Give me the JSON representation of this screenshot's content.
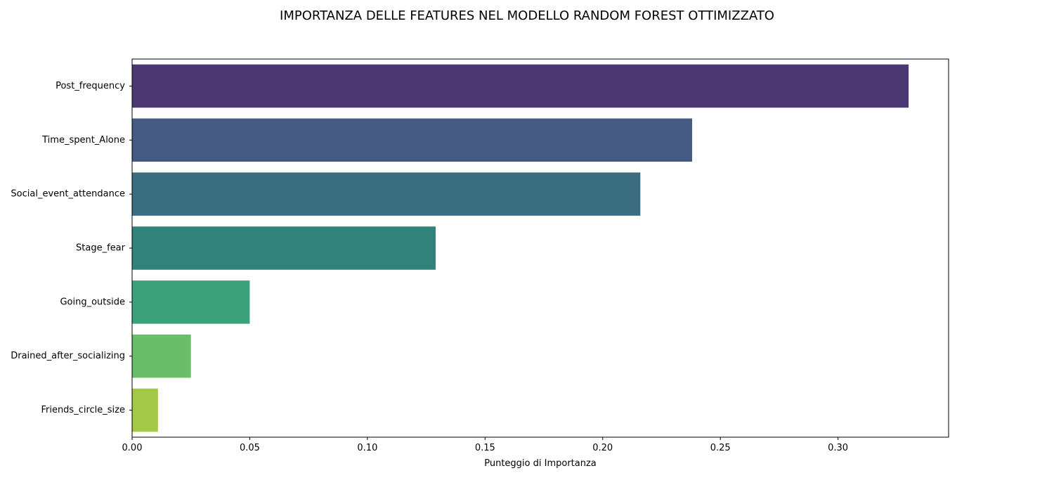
{
  "chart_data": {
    "type": "bar",
    "orientation": "horizontal",
    "title": "IMPORTANZA DELLE FEATURES NEL MODELLO RANDOM FOREST OTTIMIZZATO",
    "xlabel": "Punteggio di Importanza",
    "ylabel": "",
    "categories": [
      "Post_frequency",
      "Time_spent_Alone",
      "Social_event_attendance",
      "Stage_fear",
      "Going_outside",
      "Drained_after_socializing",
      "Friends_circle_size"
    ],
    "values": [
      0.33,
      0.238,
      0.216,
      0.129,
      0.05,
      0.025,
      0.011
    ],
    "colors": [
      "#4b3873",
      "#455a82",
      "#3b6d80",
      "#2f837b",
      "#3aa17a",
      "#6abd69",
      "#a3c847"
    ],
    "xlim": [
      0,
      0.347
    ],
    "xticks": [
      0.0,
      0.05,
      0.1,
      0.15,
      0.2,
      0.25,
      0.3
    ],
    "xtick_labels": [
      "0.00",
      "0.05",
      "0.10",
      "0.15",
      "0.20",
      "0.25",
      "0.30"
    ],
    "grid": false,
    "legend": "none"
  }
}
